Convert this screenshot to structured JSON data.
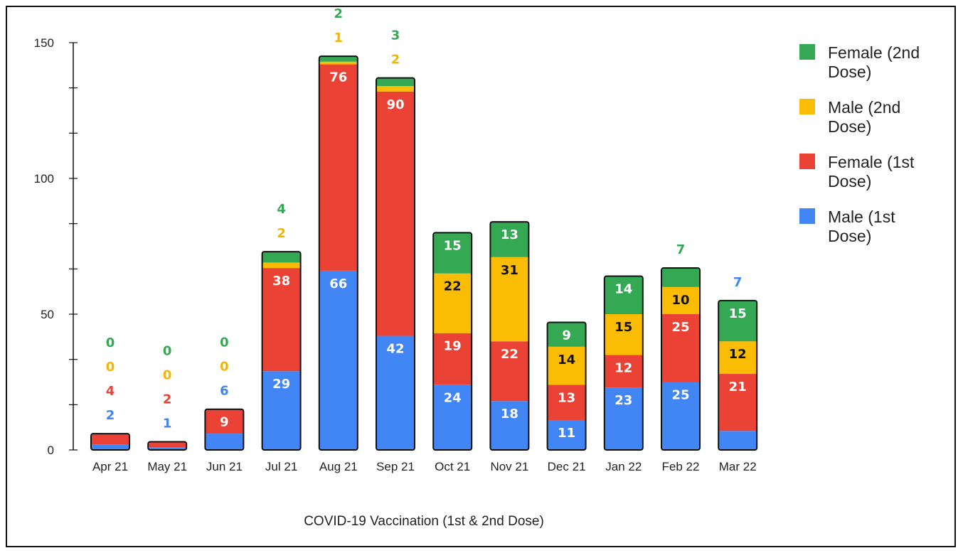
{
  "chart_data": {
    "type": "bar",
    "stacked": true,
    "title": "COVID-19 Vaccination (1st & 2nd Dose)",
    "xlabel": "",
    "ylabel": "",
    "ylim": [
      0,
      150
    ],
    "yticks": [
      "0",
      "50",
      "100",
      "150"
    ],
    "categories": [
      "Apr 21",
      "May 21",
      "Jun 21",
      "Jul 21",
      "Aug 21",
      "Sep 21",
      "Oct 21",
      "Nov 21",
      "Dec 21",
      "Jan 22",
      "Feb 22",
      "Mar 22"
    ],
    "series": [
      {
        "name": "Male (1st Dose)",
        "color": "#4285f4",
        "values": [
          2,
          1,
          6,
          29,
          66,
          42,
          24,
          18,
          11,
          23,
          25,
          7
        ]
      },
      {
        "name": "Female (1st Dose)",
        "color": "#ea4335",
        "values": [
          4,
          2,
          9,
          38,
          76,
          90,
          19,
          22,
          13,
          12,
          25,
          21
        ]
      },
      {
        "name": "Male (2nd Dose)",
        "color": "#fbbc04",
        "values": [
          0,
          0,
          0,
          2,
          1,
          2,
          22,
          31,
          14,
          15,
          10,
          12
        ]
      },
      {
        "name": "Female (2nd Dose)",
        "color": "#34a853",
        "values": [
          0,
          0,
          0,
          4,
          2,
          3,
          15,
          13,
          9,
          14,
          7,
          15
        ]
      }
    ],
    "legend_position": "right",
    "legend": [
      {
        "lines": [
          "Female (2nd",
          "Dose)"
        ],
        "color": "#34a853"
      },
      {
        "lines": [
          "Male (2nd",
          "Dose)"
        ],
        "color": "#fbbc04"
      },
      {
        "lines": [
          "Female (1st",
          "Dose)"
        ],
        "color": "#ea4335"
      },
      {
        "lines": [
          "Male (1st",
          "Dose)"
        ],
        "color": "#4285f4"
      }
    ],
    "grid": false
  }
}
